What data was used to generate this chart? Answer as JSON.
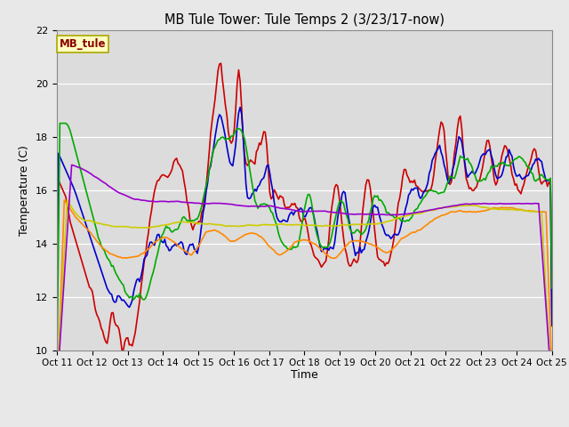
{
  "title": "MB Tule Tower: Tule Temps 2 (3/23/17-now)",
  "xlabel": "Time",
  "ylabel": "Temperature (C)",
  "ylim": [
    10,
    22
  ],
  "yticks": [
    10,
    12,
    14,
    16,
    18,
    20,
    22
  ],
  "x_labels": [
    "Oct 11",
    "Oct 12",
    "Oct 13",
    "Oct 14",
    "Oct 15",
    "Oct 16",
    "Oct 17",
    "Oct 18",
    "Oct 19",
    "Oct 20",
    "Oct 21",
    "Oct 22",
    "Oct 23",
    "Oct 24",
    "Oct 25"
  ],
  "fig_bg": "#e8e8e8",
  "plot_bg": "#dcdcdc",
  "legend_label": "MB_tule",
  "series": {
    "Tul2_Tw+2": {
      "color": "#cc0000",
      "lw": 1.2
    },
    "Tul2_Ts-2": {
      "color": "#0000cc",
      "lw": 1.2
    },
    "Tul2_Ts-4": {
      "color": "#00aa00",
      "lw": 1.2
    },
    "Tul2_Ts-8": {
      "color": "#ff8800",
      "lw": 1.2
    },
    "Tul2_Ts-16": {
      "color": "#cccc00",
      "lw": 1.2
    },
    "Tul2_Ts-32": {
      "color": "#9900cc",
      "lw": 1.2
    }
  }
}
